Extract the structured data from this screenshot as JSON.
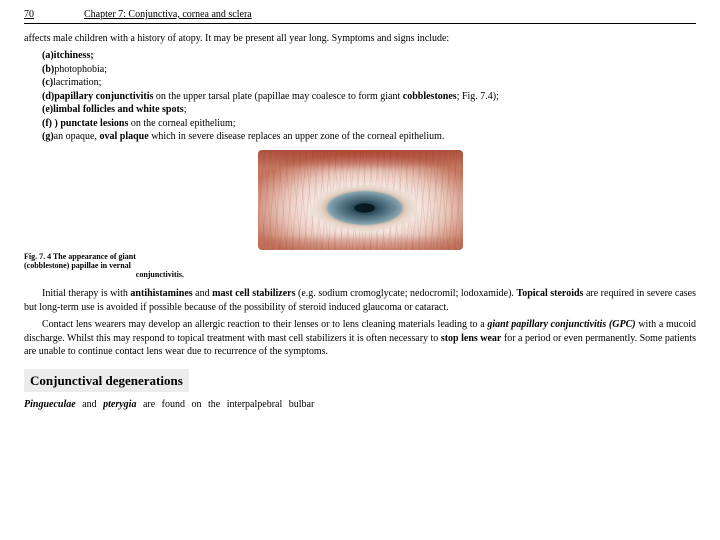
{
  "header": {
    "pageNumber": "70",
    "chapter": "Chapter 7: Conjunctiva, cornea and sclera"
  },
  "intro": "affects male children with a history of atopy. It may be present all year long.  Symptoms and signs include:",
  "list": {
    "a": {
      "label": "(a)",
      "bold": "itchiness;",
      "rest": ""
    },
    "b": {
      "label": "(b)",
      "bold": "",
      "rest": "photophobia;"
    },
    "c": {
      "label": "(c)",
      "bold": "",
      "rest": "lacrimation;"
    },
    "d": {
      "label": "(d)",
      "bold": "papillary conjunctivitis",
      "rest_before": "",
      "rest_after": " on the upper tarsal plate (papillae may  coalesce to form giant ",
      "bold2": "cobblestones",
      "tail": "; Fig. 7.4);"
    },
    "e": {
      "label": "(e)",
      "bold": "limbal follicles and white spots",
      "rest": ";"
    },
    "f": {
      "label": "(f) )  ",
      "bold": "punctate lesions",
      "rest": " on the corneal epithelium;"
    },
    "g": {
      "label": "(g)",
      "bold": "oval plaque",
      "rest_before": "an opaque, ",
      "rest_after": " which in severe disease replaces an upper  zone of the corneal epithelium."
    }
  },
  "figureCaption": {
    "l1": "Fig. 7. 4 The appearance of giant",
    "l2": "(cobblestone) papillae in vernal",
    "l3": "conjunctivitis."
  },
  "p1": {
    "pre": "Initial therapy is with ",
    "b1": "antihistamines",
    "mid1": " and ",
    "b2": "mast cell stabilizers",
    "mid2": " (e.g.  sodium cromoglycate; nedocromil; lodoxamide). ",
    "b3": "Topical steroids",
    "post": " are  required in severe cases but long-term use is avoided if possible because of  the possibility of steroid induced glaucoma or cataract."
  },
  "p2": {
    "pre": "Contact lens wearers may develop an allergic reaction to their lenses  or to lens cleaning materials leading to a ",
    "b1": "giant papillary conjunctivitis (GPC)",
    "mid1": "  with a mucoid discharge. Whilst this may respond to topical treatment  with mast cell stabilizers it is often necessary to ",
    "b2": "stop lens wear",
    "post": " for a  period or even permanently. Some patients are unable to continue contact  lens wear due to recurrence of the symptoms."
  },
  "sectionHeading": "Conjunctival degenerations",
  "last": {
    "b1": "Pingueculae",
    "mid": "  and ",
    "b2": "pterygia",
    "post": "  are  found  on  the  interpalpebral  bulbar"
  },
  "colors": {
    "bg": "#ffffff",
    "text": "#000000",
    "headingBg": "#ececec"
  }
}
